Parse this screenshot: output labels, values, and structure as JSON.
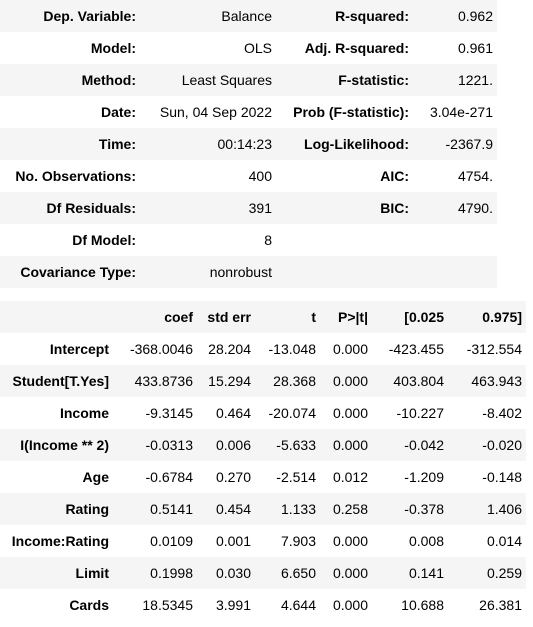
{
  "summary": {
    "rows": [
      [
        "Dep. Variable:",
        "Balance",
        "R-squared:",
        "0.962"
      ],
      [
        "Model:",
        "OLS",
        "Adj. R-squared:",
        "0.961"
      ],
      [
        "Method:",
        "Least Squares",
        "F-statistic:",
        "1221."
      ],
      [
        "Date:",
        "Sun, 04 Sep 2022",
        "Prob (F-statistic):",
        "3.04e-271"
      ],
      [
        "Time:",
        "00:14:23",
        "Log-Likelihood:",
        "-2367.9"
      ],
      [
        "No. Observations:",
        "400",
        "AIC:",
        "4754."
      ],
      [
        "Df Residuals:",
        "391",
        "BIC:",
        "4790."
      ],
      [
        "Df Model:",
        "8",
        "",
        ""
      ],
      [
        "Covariance Type:",
        "nonrobust",
        "",
        ""
      ]
    ]
  },
  "coefficients": {
    "headers": [
      "",
      "coef",
      "std err",
      "t",
      "P>|t|",
      "[0.025",
      "0.975]"
    ],
    "rows": [
      [
        "Intercept",
        "-368.0046",
        "28.204",
        "-13.048",
        "0.000",
        "-423.455",
        "-312.554"
      ],
      [
        "Student[T.Yes]",
        "433.8736",
        "15.294",
        "28.368",
        "0.000",
        "403.804",
        "463.943"
      ],
      [
        "Income",
        "-9.3145",
        "0.464",
        "-20.074",
        "0.000",
        "-10.227",
        "-8.402"
      ],
      [
        "I(Income ** 2)",
        "-0.0313",
        "0.006",
        "-5.633",
        "0.000",
        "-0.042",
        "-0.020"
      ],
      [
        "Age",
        "-0.6784",
        "0.270",
        "-2.514",
        "0.012",
        "-1.209",
        "-0.148"
      ],
      [
        "Rating",
        "0.5141",
        "0.454",
        "1.133",
        "0.258",
        "-0.378",
        "1.406"
      ],
      [
        "Income:Rating",
        "0.0109",
        "0.001",
        "7.903",
        "0.000",
        "0.008",
        "0.014"
      ],
      [
        "Limit",
        "0.1998",
        "0.030",
        "6.650",
        "0.000",
        "0.141",
        "0.259"
      ],
      [
        "Cards",
        "18.5345",
        "3.991",
        "4.644",
        "0.000",
        "10.688",
        "26.381"
      ]
    ]
  }
}
